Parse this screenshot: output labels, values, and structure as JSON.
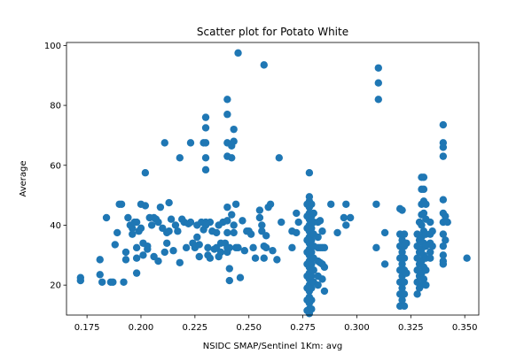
{
  "chart_data": {
    "type": "scatter",
    "title": "Scatter plot for Potato White",
    "xlabel": "NSIDC SMAP/Sentinel 1Km: avg",
    "ylabel": "Average",
    "xlim": [
      0.1655,
      0.3565
    ],
    "ylim": [
      10,
      101
    ],
    "xticks": [
      "0.175",
      "0.200",
      "0.225",
      "0.250",
      "0.275",
      "0.300",
      "0.325",
      "0.350"
    ],
    "yticks": [
      "20",
      "40",
      "60",
      "80",
      "100"
    ],
    "grid": false,
    "legend": "none",
    "marker_color": "#1f77b4",
    "points": [
      [
        0.172,
        22.5
      ],
      [
        0.172,
        21.5
      ],
      [
        0.181,
        28.5
      ],
      [
        0.181,
        23.5
      ],
      [
        0.182,
        21
      ],
      [
        0.184,
        42.5
      ],
      [
        0.186,
        21
      ],
      [
        0.187,
        21
      ],
      [
        0.188,
        33.5
      ],
      [
        0.189,
        37.5
      ],
      [
        0.19,
        47
      ],
      [
        0.191,
        47
      ],
      [
        0.192,
        21
      ],
      [
        0.193,
        28.5
      ],
      [
        0.193,
        31
      ],
      [
        0.194,
        42.5
      ],
      [
        0.195,
        40
      ],
      [
        0.196,
        39
      ],
      [
        0.196,
        37
      ],
      [
        0.197,
        41
      ],
      [
        0.198,
        29
      ],
      [
        0.198,
        32.5
      ],
      [
        0.198,
        41
      ],
      [
        0.198,
        24
      ],
      [
        0.199,
        38
      ],
      [
        0.2,
        47
      ],
      [
        0.2,
        39
      ],
      [
        0.201,
        30
      ],
      [
        0.201,
        34
      ],
      [
        0.202,
        57.5
      ],
      [
        0.202,
        46.5
      ],
      [
        0.203,
        33
      ],
      [
        0.203,
        32
      ],
      [
        0.204,
        42.5
      ],
      [
        0.205,
        40
      ],
      [
        0.206,
        29.5
      ],
      [
        0.206,
        42.5
      ],
      [
        0.207,
        42
      ],
      [
        0.208,
        28
      ],
      [
        0.208,
        41
      ],
      [
        0.209,
        46
      ],
      [
        0.21,
        39
      ],
      [
        0.211,
        67.5
      ],
      [
        0.211,
        31
      ],
      [
        0.212,
        34
      ],
      [
        0.212,
        37.5
      ],
      [
        0.213,
        47.5
      ],
      [
        0.213,
        38
      ],
      [
        0.214,
        42
      ],
      [
        0.215,
        31.5
      ],
      [
        0.216,
        40
      ],
      [
        0.217,
        38
      ],
      [
        0.218,
        27.5
      ],
      [
        0.218,
        62.5
      ],
      [
        0.219,
        42
      ],
      [
        0.22,
        41
      ],
      [
        0.221,
        32.5
      ],
      [
        0.222,
        40.5
      ],
      [
        0.223,
        41
      ],
      [
        0.223,
        67.5
      ],
      [
        0.224,
        34
      ],
      [
        0.225,
        32.5
      ],
      [
        0.226,
        40
      ],
      [
        0.226,
        36
      ],
      [
        0.227,
        29.5
      ],
      [
        0.227,
        33.5
      ],
      [
        0.228,
        41
      ],
      [
        0.229,
        67.5
      ],
      [
        0.229,
        38.5
      ],
      [
        0.23,
        76
      ],
      [
        0.23,
        72.5
      ],
      [
        0.23,
        67.5
      ],
      [
        0.23,
        62.5
      ],
      [
        0.23,
        58.5
      ],
      [
        0.23,
        41
      ],
      [
        0.23,
        40
      ],
      [
        0.231,
        30
      ],
      [
        0.231,
        32.5
      ],
      [
        0.232,
        29
      ],
      [
        0.232,
        41
      ],
      [
        0.233,
        38
      ],
      [
        0.234,
        32
      ],
      [
        0.235,
        32.5
      ],
      [
        0.235,
        37.5
      ],
      [
        0.236,
        40
      ],
      [
        0.236,
        29.5
      ],
      [
        0.237,
        31
      ],
      [
        0.237,
        34
      ],
      [
        0.238,
        41
      ],
      [
        0.239,
        34
      ],
      [
        0.24,
        82
      ],
      [
        0.24,
        77
      ],
      [
        0.24,
        67.5
      ],
      [
        0.24,
        63
      ],
      [
        0.24,
        46
      ],
      [
        0.24,
        41.5
      ],
      [
        0.24,
        37.5
      ],
      [
        0.24,
        32.5
      ],
      [
        0.24,
        31
      ],
      [
        0.241,
        25.5
      ],
      [
        0.241,
        21.5
      ],
      [
        0.241,
        32.5
      ],
      [
        0.242,
        66.5
      ],
      [
        0.242,
        62.5
      ],
      [
        0.242,
        43.5
      ],
      [
        0.243,
        72
      ],
      [
        0.243,
        68
      ],
      [
        0.243,
        40
      ],
      [
        0.243,
        37.5
      ],
      [
        0.244,
        47
      ],
      [
        0.244,
        32.5
      ],
      [
        0.245,
        97.5
      ],
      [
        0.245,
        32.5
      ],
      [
        0.246,
        22.5
      ],
      [
        0.247,
        41.5
      ],
      [
        0.248,
        31.5
      ],
      [
        0.249,
        38
      ],
      [
        0.25,
        38
      ],
      [
        0.251,
        37
      ],
      [
        0.252,
        32.5
      ],
      [
        0.253,
        29
      ],
      [
        0.255,
        45
      ],
      [
        0.255,
        42.5
      ],
      [
        0.256,
        40
      ],
      [
        0.256,
        38
      ],
      [
        0.257,
        93.5
      ],
      [
        0.257,
        33
      ],
      [
        0.257,
        29
      ],
      [
        0.258,
        32.5
      ],
      [
        0.258,
        36.5
      ],
      [
        0.259,
        46
      ],
      [
        0.26,
        47
      ],
      [
        0.261,
        31.5
      ],
      [
        0.263,
        28.5
      ],
      [
        0.264,
        62.5
      ],
      [
        0.265,
        41
      ],
      [
        0.27,
        38
      ],
      [
        0.27,
        32.5
      ],
      [
        0.272,
        37.5
      ],
      [
        0.272,
        44
      ],
      [
        0.273,
        41
      ],
      [
        0.278,
        57.5
      ],
      [
        0.278,
        49.5
      ],
      [
        0.278,
        48
      ],
      [
        0.278,
        46
      ],
      [
        0.278,
        44
      ],
      [
        0.278,
        42
      ],
      [
        0.278,
        40
      ],
      [
        0.278,
        38
      ],
      [
        0.278,
        36
      ],
      [
        0.278,
        34
      ],
      [
        0.278,
        32
      ],
      [
        0.278,
        30
      ],
      [
        0.278,
        28
      ],
      [
        0.278,
        26
      ],
      [
        0.278,
        24
      ],
      [
        0.278,
        22
      ],
      [
        0.278,
        20
      ],
      [
        0.278,
        18
      ],
      [
        0.278,
        16
      ],
      [
        0.278,
        14
      ],
      [
        0.278,
        12
      ],
      [
        0.278,
        10.5
      ],
      [
        0.277,
        47
      ],
      [
        0.277,
        43
      ],
      [
        0.277,
        39
      ],
      [
        0.277,
        35
      ],
      [
        0.277,
        31
      ],
      [
        0.277,
        27
      ],
      [
        0.277,
        23
      ],
      [
        0.277,
        19
      ],
      [
        0.277,
        15
      ],
      [
        0.277,
        11.5
      ],
      [
        0.279,
        47
      ],
      [
        0.279,
        43
      ],
      [
        0.279,
        39
      ],
      [
        0.279,
        35
      ],
      [
        0.279,
        31
      ],
      [
        0.279,
        27
      ],
      [
        0.279,
        23
      ],
      [
        0.279,
        19
      ],
      [
        0.279,
        15
      ],
      [
        0.279,
        12
      ],
      [
        0.28,
        44
      ],
      [
        0.28,
        41
      ],
      [
        0.28,
        37
      ],
      [
        0.28,
        33
      ],
      [
        0.28,
        29
      ],
      [
        0.28,
        25
      ],
      [
        0.28,
        21
      ],
      [
        0.282,
        41
      ],
      [
        0.282,
        36
      ],
      [
        0.282,
        32.5
      ],
      [
        0.282,
        28
      ],
      [
        0.282,
        23
      ],
      [
        0.282,
        20
      ],
      [
        0.283,
        41.5
      ],
      [
        0.283,
        32.5
      ],
      [
        0.283,
        27.5
      ],
      [
        0.284,
        38
      ],
      [
        0.284,
        32.5
      ],
      [
        0.284,
        27
      ],
      [
        0.284,
        22
      ],
      [
        0.285,
        32.5
      ],
      [
        0.285,
        26
      ],
      [
        0.285,
        18
      ],
      [
        0.288,
        47
      ],
      [
        0.291,
        37.5
      ],
      [
        0.294,
        42.5
      ],
      [
        0.295,
        47
      ],
      [
        0.295,
        40
      ],
      [
        0.297,
        42.5
      ],
      [
        0.309,
        47
      ],
      [
        0.309,
        32.5
      ],
      [
        0.31,
        92.5
      ],
      [
        0.31,
        87.5
      ],
      [
        0.31,
        82
      ],
      [
        0.313,
        27
      ],
      [
        0.313,
        37.5
      ],
      [
        0.32,
        45.5
      ],
      [
        0.32,
        37
      ],
      [
        0.32,
        33
      ],
      [
        0.32,
        29
      ],
      [
        0.32,
        25
      ],
      [
        0.32,
        21
      ],
      [
        0.32,
        17
      ],
      [
        0.32,
        13
      ],
      [
        0.321,
        45
      ],
      [
        0.321,
        35
      ],
      [
        0.321,
        31
      ],
      [
        0.321,
        27
      ],
      [
        0.321,
        23
      ],
      [
        0.321,
        19
      ],
      [
        0.321,
        15
      ],
      [
        0.322,
        37
      ],
      [
        0.322,
        33
      ],
      [
        0.322,
        29
      ],
      [
        0.322,
        25
      ],
      [
        0.322,
        21
      ],
      [
        0.322,
        17
      ],
      [
        0.322,
        13
      ],
      [
        0.323,
        34
      ],
      [
        0.323,
        24
      ],
      [
        0.328,
        37
      ],
      [
        0.328,
        33
      ],
      [
        0.328,
        29
      ],
      [
        0.328,
        25
      ],
      [
        0.328,
        21
      ],
      [
        0.328,
        17
      ],
      [
        0.329,
        41
      ],
      [
        0.329,
        35
      ],
      [
        0.329,
        31
      ],
      [
        0.329,
        27
      ],
      [
        0.329,
        23
      ],
      [
        0.329,
        19
      ],
      [
        0.33,
        56
      ],
      [
        0.33,
        52
      ],
      [
        0.33,
        47
      ],
      [
        0.33,
        43.5
      ],
      [
        0.33,
        40
      ],
      [
        0.33,
        36
      ],
      [
        0.33,
        32
      ],
      [
        0.33,
        28
      ],
      [
        0.33,
        24
      ],
      [
        0.33,
        20
      ],
      [
        0.331,
        56
      ],
      [
        0.331,
        52
      ],
      [
        0.331,
        48
      ],
      [
        0.331,
        44
      ],
      [
        0.331,
        38
      ],
      [
        0.331,
        34
      ],
      [
        0.331,
        30
      ],
      [
        0.331,
        26
      ],
      [
        0.331,
        22
      ],
      [
        0.332,
        47
      ],
      [
        0.332,
        42
      ],
      [
        0.332,
        37
      ],
      [
        0.332,
        33
      ],
      [
        0.332,
        29
      ],
      [
        0.332,
        25
      ],
      [
        0.332,
        20
      ],
      [
        0.334,
        41
      ],
      [
        0.334,
        37
      ],
      [
        0.334,
        34
      ],
      [
        0.334,
        31
      ],
      [
        0.334,
        29
      ],
      [
        0.335,
        38
      ],
      [
        0.335,
        33
      ],
      [
        0.34,
        73.5
      ],
      [
        0.34,
        67.5
      ],
      [
        0.34,
        66
      ],
      [
        0.34,
        63
      ],
      [
        0.34,
        48.5
      ],
      [
        0.34,
        44
      ],
      [
        0.34,
        41
      ],
      [
        0.34,
        37
      ],
      [
        0.34,
        33
      ],
      [
        0.34,
        30
      ],
      [
        0.34,
        28
      ],
      [
        0.34,
        27
      ],
      [
        0.341,
        43
      ],
      [
        0.341,
        35
      ],
      [
        0.342,
        41
      ],
      [
        0.351,
        29
      ]
    ]
  }
}
